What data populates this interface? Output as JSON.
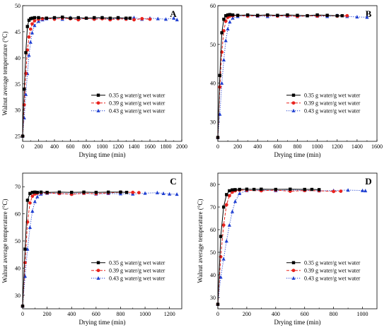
{
  "chart_data": [
    {
      "type": "line",
      "panel": "A",
      "xlabel": "Drying time (min)",
      "ylabel": "Walnut average temperature (°C)",
      "xlim": [
        0,
        2000
      ],
      "ylim": [
        24,
        50
      ],
      "xticks": [
        0,
        200,
        400,
        600,
        800,
        1000,
        1200,
        1400,
        1600,
        1800,
        2000
      ],
      "yticks": [
        25,
        30,
        35,
        40,
        45,
        50
      ],
      "legend_position": "center-right",
      "series": [
        {
          "name": "0.35 g water/g wet water",
          "color": "#000000",
          "marker": "square",
          "dash": "solid",
          "x": [
            0,
            20,
            40,
            60,
            80,
            100,
            120,
            150,
            200,
            300,
            400,
            500,
            600,
            700,
            800,
            900,
            1000,
            1100,
            1200,
            1300,
            1350
          ],
          "y": [
            25,
            34,
            41,
            46,
            47.2,
            47.5,
            47.6,
            47.7,
            47.7,
            47.6,
            47.7,
            47.8,
            47.6,
            47.7,
            47.6,
            47.7,
            47.7,
            47.6,
            47.7,
            47.6,
            47.6
          ]
        },
        {
          "name": "0.39 g water/g wet water",
          "color": "#e8231e",
          "marker": "circle",
          "dash": "dashed",
          "x": [
            0,
            20,
            40,
            60,
            80,
            100,
            120,
            150,
            200,
            250,
            300,
            400,
            500,
            600,
            700,
            800,
            900,
            1000,
            1100,
            1200,
            1300,
            1400,
            1500,
            1600
          ],
          "y": [
            25,
            31,
            37,
            41.5,
            44,
            45.5,
            46.5,
            47.1,
            47.4,
            47.5,
            47.6,
            47.4,
            47.6,
            47.5,
            47.3,
            47.6,
            47.4,
            47.5,
            47.3,
            47.5,
            47.4,
            47.3,
            47.5,
            47.4
          ]
        },
        {
          "name": "0.43 g water/g wet water",
          "color": "#1f3fd1",
          "marker": "triangle",
          "dash": "dotted",
          "x": [
            0,
            20,
            40,
            60,
            80,
            100,
            120,
            150,
            200,
            250,
            300,
            400,
            500,
            600,
            700,
            800,
            900,
            1000,
            1100,
            1200,
            1300,
            1400,
            1500,
            1600,
            1700,
            1800,
            1900,
            1940
          ],
          "y": [
            25,
            28.5,
            33,
            37,
            40.5,
            43,
            44.8,
            46.2,
            47,
            47.3,
            47.5,
            47.6,
            47.4,
            47.7,
            47.5,
            47.6,
            47.5,
            47.7,
            47.4,
            47.6,
            47.5,
            47.7,
            47.4,
            47.6,
            47.5,
            47.4,
            47.6,
            47.3
          ]
        }
      ]
    },
    {
      "type": "line",
      "panel": "B",
      "xlabel": "Drying time (min)",
      "ylabel": "",
      "xlim": [
        0,
        1600
      ],
      "ylim": [
        25,
        60
      ],
      "xticks": [
        0,
        200,
        400,
        600,
        800,
        1000,
        1200,
        1400,
        1600
      ],
      "yticks": [
        30,
        40,
        50,
        60
      ],
      "legend_position": "center-right",
      "series": [
        {
          "name": "0.35 g water/g wet water",
          "color": "#000000",
          "marker": "square",
          "dash": "solid",
          "x": [
            0,
            20,
            40,
            60,
            80,
            100,
            120,
            150,
            200,
            300,
            400,
            500,
            600,
            700,
            800,
            900,
            1000,
            1100,
            1200,
            1250
          ],
          "y": [
            26,
            42,
            53,
            56.5,
            57.4,
            57.6,
            57.7,
            57.6,
            57.5,
            57.6,
            57.5,
            57.6,
            57.5,
            57.6,
            57.5,
            57.4,
            57.6,
            57.5,
            57.4,
            57.4
          ]
        },
        {
          "name": "0.39 g water/g wet water",
          "color": "#e8231e",
          "marker": "circle",
          "dash": "dashed",
          "x": [
            0,
            20,
            40,
            60,
            80,
            100,
            120,
            150,
            200,
            300,
            400,
            500,
            600,
            700,
            800,
            900,
            1000,
            1100,
            1200,
            1300
          ],
          "y": [
            26,
            39,
            48,
            53.5,
            56,
            57,
            57.3,
            57.4,
            57.5,
            57.3,
            57.4,
            57.5,
            57.3,
            57.4,
            57.2,
            57.4,
            57.3,
            57.5,
            57.3,
            57.4
          ]
        },
        {
          "name": "0.43 g water/g wet water",
          "color": "#1f3fd1",
          "marker": "triangle",
          "dash": "dotted",
          "x": [
            0,
            20,
            40,
            60,
            80,
            100,
            120,
            150,
            200,
            300,
            400,
            500,
            600,
            700,
            800,
            900,
            1000,
            1100,
            1200,
            1300,
            1400,
            1500
          ],
          "y": [
            26,
            32,
            40,
            46,
            51,
            54,
            55.8,
            56.8,
            57.2,
            57.4,
            57.3,
            57.2,
            57.4,
            57.3,
            57.2,
            57.4,
            57.3,
            57.2,
            57.5,
            57.2,
            57.1,
            57.0
          ]
        }
      ]
    },
    {
      "type": "line",
      "panel": "C",
      "xlabel": "Drying time (min)",
      "ylabel": "Walnut average temperature (°C)",
      "xlim": [
        0,
        1300
      ],
      "ylim": [
        25,
        75
      ],
      "xticks": [
        0,
        200,
        400,
        600,
        800,
        1000,
        1200
      ],
      "yticks": [
        30,
        40,
        50,
        60,
        70
      ],
      "legend_position": "center-right",
      "series": [
        {
          "name": "0.35 g water/g wet water",
          "color": "#000000",
          "marker": "square",
          "dash": "solid",
          "x": [
            0,
            20,
            40,
            60,
            80,
            100,
            120,
            150,
            200,
            300,
            400,
            500,
            600,
            700,
            800,
            850
          ],
          "y": [
            26,
            47,
            65,
            67.5,
            67.9,
            68,
            67.9,
            68,
            67.9,
            68,
            67.9,
            68,
            67.9,
            68,
            68,
            67.9
          ]
        },
        {
          "name": "0.39 g water/g wet water",
          "color": "#e8231e",
          "marker": "circle",
          "dash": "dashed",
          "x": [
            0,
            20,
            40,
            60,
            80,
            100,
            120,
            150,
            200,
            300,
            400,
            500,
            600,
            700,
            800,
            900,
            950
          ],
          "y": [
            26,
            42,
            57,
            64,
            66.5,
            67.3,
            67.6,
            67.8,
            67.7,
            67.5,
            67.2,
            67.6,
            67.4,
            67.7,
            68,
            67.9,
            67.8
          ]
        },
        {
          "name": "0.43 g water/g wet water",
          "color": "#1f3fd1",
          "marker": "triangle",
          "dash": "dotted",
          "x": [
            0,
            20,
            40,
            60,
            80,
            100,
            120,
            150,
            200,
            300,
            400,
            500,
            600,
            700,
            800,
            900,
            1000,
            1100,
            1150,
            1200,
            1260
          ],
          "y": [
            26,
            37,
            47,
            55,
            61,
            64.5,
            66.3,
            67.3,
            67.6,
            67.5,
            67.4,
            67.6,
            67.3,
            67.5,
            67.4,
            67.3,
            67.6,
            67.8,
            67.5,
            67.3,
            67.2
          ]
        }
      ]
    },
    {
      "type": "line",
      "panel": "D",
      "xlabel": "Drying time (min)",
      "ylabel": "Walnut average temperature (°C)",
      "xlim": [
        0,
        1100
      ],
      "ylim": [
        25,
        85
      ],
      "xticks": [
        0,
        200,
        400,
        600,
        800,
        1000
      ],
      "yticks": [
        30,
        40,
        50,
        60,
        70,
        80
      ],
      "legend_position": "center-right",
      "series": [
        {
          "name": "0.35 g water/g wet water",
          "color": "#000000",
          "marker": "square",
          "dash": "solid",
          "x": [
            0,
            20,
            40,
            60,
            80,
            100,
            120,
            150,
            200,
            250,
            300,
            400,
            500,
            600,
            650,
            700
          ],
          "y": [
            27,
            57,
            70,
            75.5,
            77.2,
            77.6,
            77.7,
            77.8,
            77.9,
            77.8,
            77.9,
            77.8,
            77.9,
            77.8,
            77.8,
            77.7
          ]
        },
        {
          "name": "0.39 g water/g wet water",
          "color": "#e8231e",
          "marker": "circle",
          "dash": "dashed",
          "x": [
            0,
            20,
            40,
            60,
            80,
            100,
            120,
            150,
            200,
            300,
            400,
            500,
            600,
            700,
            800,
            850
          ],
          "y": [
            27,
            48,
            62,
            71,
            75,
            76.6,
            77.2,
            77.5,
            77.4,
            77.2,
            77.5,
            77,
            77.3,
            77.2,
            76.9,
            77.0
          ]
        },
        {
          "name": "0.43 g water/g wet water",
          "color": "#1f3fd1",
          "marker": "triangle",
          "dash": "dotted",
          "x": [
            0,
            20,
            40,
            60,
            80,
            100,
            120,
            150,
            200,
            300,
            400,
            500,
            600,
            700,
            800,
            900,
            1000,
            1020
          ],
          "y": [
            27,
            39,
            47,
            55,
            62,
            68,
            72.5,
            76,
            77.3,
            77.5,
            77.3,
            77.5,
            77.4,
            77.2,
            77.3,
            77.5,
            77.3,
            77.2
          ]
        }
      ]
    }
  ]
}
